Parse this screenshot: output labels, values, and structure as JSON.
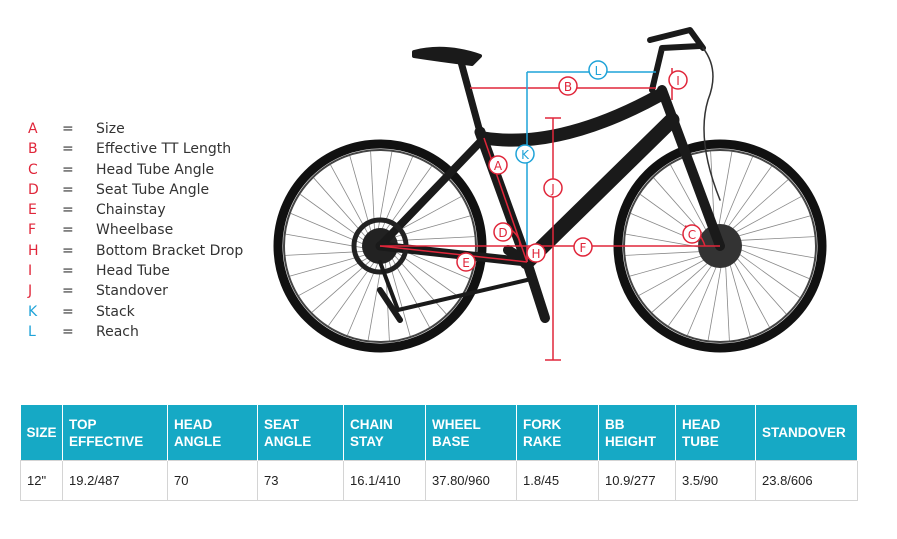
{
  "legend": [
    {
      "letter": "A",
      "eq": "=",
      "label": "Size",
      "color": "#e0263a"
    },
    {
      "letter": "B",
      "eq": "=",
      "label": "Effective TT Length",
      "color": "#e0263a"
    },
    {
      "letter": "C",
      "eq": "=",
      "label": "Head Tube Angle",
      "color": "#e0263a"
    },
    {
      "letter": "D",
      "eq": "=",
      "label": "Seat Tube Angle",
      "color": "#e0263a"
    },
    {
      "letter": "E",
      "eq": "=",
      "label": "Chainstay",
      "color": "#e0263a"
    },
    {
      "letter": "F",
      "eq": "=",
      "label": "Wheelbase",
      "color": "#e0263a"
    },
    {
      "letter": "H",
      "eq": "=",
      "label": "Bottom Bracket Drop",
      "color": "#e0263a"
    },
    {
      "letter": "I",
      "eq": "=",
      "label": "Head Tube",
      "color": "#e0263a"
    },
    {
      "letter": "J",
      "eq": "=",
      "label": "Standover",
      "color": "#e0263a"
    },
    {
      "letter": "K",
      "eq": "=",
      "label": "Stack",
      "color": "#1fa3d8"
    },
    {
      "letter": "L",
      "eq": "=",
      "label": "Reach",
      "color": "#1fa3d8"
    }
  ],
  "diagram_markers": {
    "A": "A",
    "B": "B",
    "C": "C",
    "D": "D",
    "E": "E",
    "F": "F",
    "H": "H",
    "I": "I",
    "J": "J",
    "K": "K",
    "L": "L"
  },
  "colors": {
    "red": "#e0263a",
    "blue": "#1fa3d8",
    "header": "#16a9c5",
    "frame": "#1a1a1a"
  },
  "table": {
    "headers": [
      "SIZE",
      "TOP\nEFFECTIVE",
      "HEAD\nANGLE",
      "SEAT\nANGLE",
      "CHAIN\nSTAY",
      "WHEEL\nBASE",
      "FORK\nRAKE",
      "BB\nHEIGHT",
      "HEAD\nTUBE",
      "STANDOVER"
    ],
    "row": [
      "12\"",
      "19.2/487",
      "70",
      "73",
      "16.1/410",
      "37.80/960",
      "1.8/45",
      "10.9/277",
      "3.5/90",
      "23.8/606"
    ]
  }
}
